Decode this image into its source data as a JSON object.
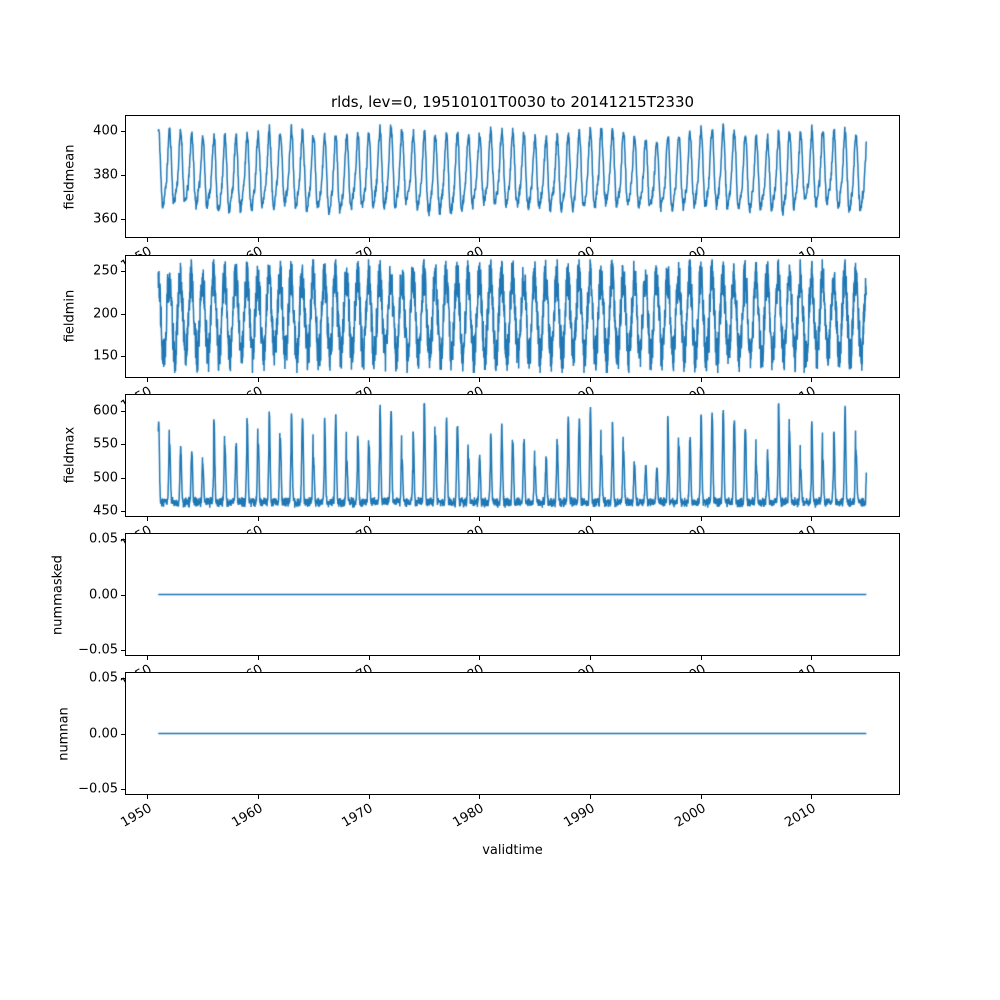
{
  "title": "rlds, lev=0, 19510101T0030 to 20141215T2330",
  "line_color": "#1f77b4",
  "x_axis": {
    "label": "validtime",
    "ticks": [
      1950,
      1960,
      1970,
      1980,
      1990,
      2000,
      2010
    ],
    "tick_labels": [
      "1950",
      "1960",
      "1970",
      "1980",
      "1990",
      "2000",
      "2010"
    ],
    "lim": [
      1948.0,
      2018.0
    ]
  },
  "chart_data": [
    {
      "type": "line",
      "name": "fieldmean",
      "ylabel": "fieldmean",
      "ylim": [
        351.5,
        407.5
      ],
      "yticks": [
        {
          "v": 360,
          "label": "360"
        },
        {
          "v": 380,
          "label": "380"
        },
        {
          "v": 400,
          "label": "400"
        }
      ],
      "x_start": 1951.0,
      "x_end": 2014.96,
      "signal": {
        "kind": "seasonal",
        "points": 2600,
        "base": 380,
        "amp1": 15.5,
        "amp2": 4.0,
        "slow": 1.5,
        "noise": 2.4,
        "phase": 1.55,
        "min": 356,
        "max": 404,
        "seed": 11
      }
    },
    {
      "type": "line",
      "name": "fieldmin",
      "ylabel": "fieldmin",
      "ylim": [
        125.0,
        270.0
      ],
      "yticks": [
        {
          "v": 150,
          "label": "150"
        },
        {
          "v": 200,
          "label": "200"
        },
        {
          "v": 250,
          "label": "250"
        }
      ],
      "x_start": 1951.0,
      "x_end": 2014.96,
      "signal": {
        "kind": "band",
        "points": 3600,
        "base": 198,
        "amp": 46,
        "noise": 23,
        "phase": 1.55,
        "dip_chance": 0.012,
        "dip": 16,
        "min": 131,
        "max": 265,
        "seed": 22
      }
    },
    {
      "type": "line",
      "name": "fieldmax",
      "ylabel": "fieldmax",
      "ylim": [
        442.5,
        625.5
      ],
      "yticks": [
        {
          "v": 450,
          "label": "450"
        },
        {
          "v": 500,
          "label": "500"
        },
        {
          "v": 550,
          "label": "550"
        },
        {
          "v": 600,
          "label": "600"
        }
      ],
      "x_start": 1951.0,
      "x_end": 2014.96,
      "signal": {
        "kind": "spiky",
        "points": 3600,
        "base": 459,
        "band_noise": 11,
        "noise": 3,
        "spike_min": 45,
        "spike_max": 150,
        "sharpness": 5,
        "phase": 1.35,
        "min": 455,
        "max": 612,
        "seed": 33
      }
    },
    {
      "type": "line",
      "name": "nummasked",
      "ylabel": "nummasked",
      "ylim": [
        -0.0557,
        0.0557
      ],
      "yticks": [
        {
          "v": -0.05,
          "label": "−0.05"
        },
        {
          "v": 0,
          "label": "0.00"
        },
        {
          "v": 0.05,
          "label": "0.05"
        }
      ],
      "x_start": 1951.0,
      "x_end": 2014.96,
      "signal": {
        "kind": "constant",
        "points": 2,
        "value": 0.0
      }
    },
    {
      "type": "line",
      "name": "numnan",
      "ylabel": "numnan",
      "ylim": [
        -0.0557,
        0.0557
      ],
      "yticks": [
        {
          "v": -0.05,
          "label": "−0.05"
        },
        {
          "v": 0,
          "label": "0.00"
        },
        {
          "v": 0.05,
          "label": "0.05"
        }
      ],
      "x_start": 1951.0,
      "x_end": 2014.96,
      "signal": {
        "kind": "constant",
        "points": 2,
        "value": 0.0
      }
    }
  ]
}
